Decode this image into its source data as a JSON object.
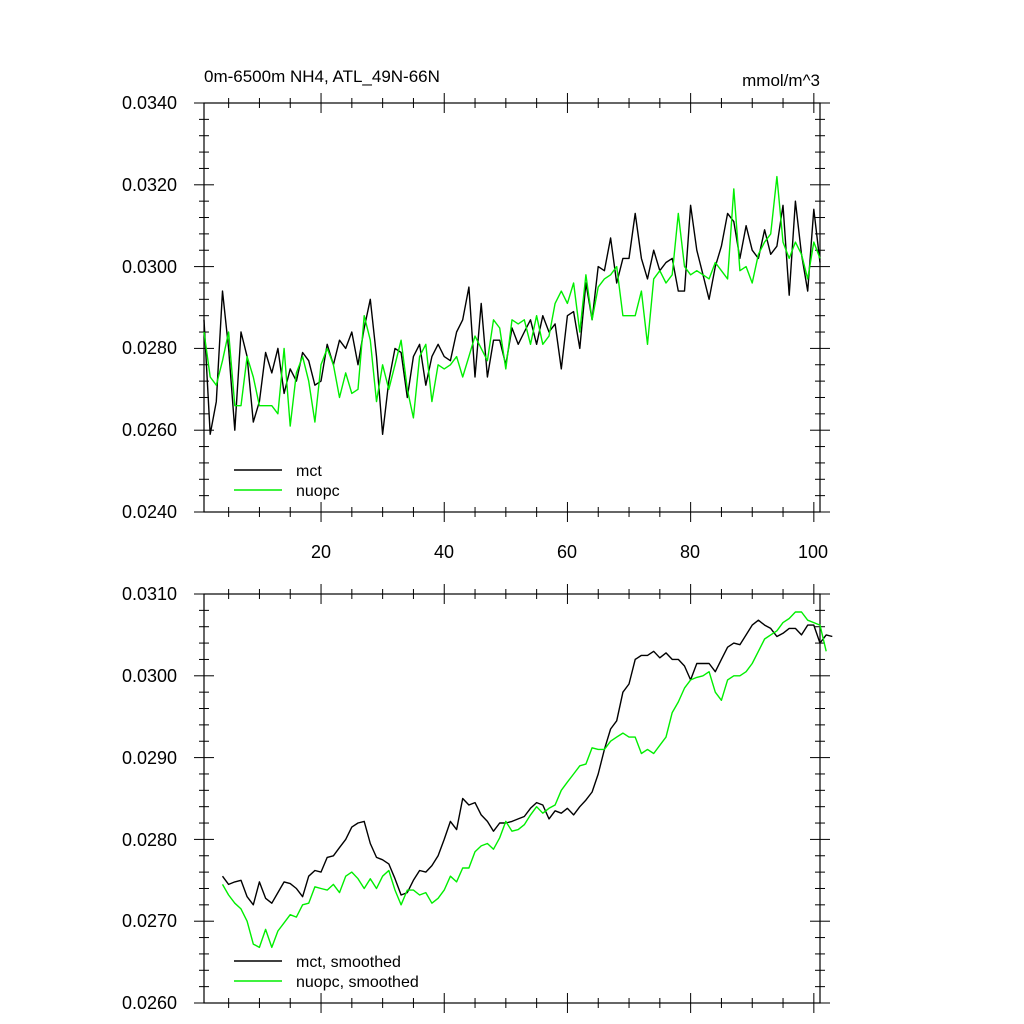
{
  "chart_data": [
    {
      "type": "line",
      "title_left": "0m-6500m NH4, ATL_49N-66N",
      "title_right": "mmol/m^3",
      "xlim": [
        1,
        101
      ],
      "ylim": [
        0.024,
        0.034
      ],
      "yticks": [
        "0.0240",
        "0.0260",
        "0.0280",
        "0.0300",
        "0.0320",
        "0.0340"
      ],
      "xticks": [
        "20",
        "40",
        "60",
        "80",
        "100"
      ],
      "xtick_values": [
        20,
        40,
        60,
        80,
        100
      ],
      "ytick_values": [
        0.024,
        0.026,
        0.028,
        0.03,
        0.032,
        0.034
      ],
      "legend": [
        "mct",
        "nuopc"
      ],
      "series": [
        {
          "name": "mct",
          "color": "#000000",
          "x_start": 1,
          "values": [
            0.0287,
            0.0259,
            0.0267,
            0.0294,
            0.028,
            0.026,
            0.0284,
            0.0278,
            0.0262,
            0.0267,
            0.0279,
            0.0274,
            0.028,
            0.0269,
            0.0275,
            0.0272,
            0.0279,
            0.0277,
            0.0271,
            0.0272,
            0.0281,
            0.0276,
            0.0282,
            0.028,
            0.0284,
            0.0276,
            0.0285,
            0.0292,
            0.0278,
            0.0259,
            0.0272,
            0.028,
            0.0279,
            0.0268,
            0.0278,
            0.0281,
            0.0271,
            0.0278,
            0.0281,
            0.0278,
            0.0277,
            0.0284,
            0.0287,
            0.0295,
            0.0273,
            0.0291,
            0.0273,
            0.0282,
            0.0282,
            0.0276,
            0.0285,
            0.0281,
            0.0284,
            0.0287,
            0.0281,
            0.0288,
            0.0284,
            0.0286,
            0.0275,
            0.0288,
            0.0289,
            0.028,
            0.0296,
            0.0287,
            0.03,
            0.0299,
            0.0307,
            0.0296,
            0.0302,
            0.0302,
            0.0313,
            0.0302,
            0.0297,
            0.0304,
            0.0299,
            0.0301,
            0.0302,
            0.0294,
            0.0294,
            0.0315,
            0.0304,
            0.0298,
            0.0292,
            0.03,
            0.0305,
            0.0313,
            0.0311,
            0.0302,
            0.031,
            0.0304,
            0.0302,
            0.0309,
            0.0303,
            0.0305,
            0.0315,
            0.0293,
            0.0316,
            0.0303,
            0.0294,
            0.0314,
            0.0301
          ]
        },
        {
          "name": "nuopc",
          "color": "#00ee00",
          "x_start": 1,
          "values": [
            0.0284,
            0.0273,
            0.0271,
            0.0277,
            0.0284,
            0.0266,
            0.0266,
            0.0278,
            0.0273,
            0.0266,
            0.0266,
            0.0266,
            0.0264,
            0.028,
            0.0261,
            0.0274,
            0.0278,
            0.0272,
            0.0262,
            0.0276,
            0.028,
            0.0276,
            0.0268,
            0.0274,
            0.0269,
            0.027,
            0.0288,
            0.0282,
            0.0267,
            0.0276,
            0.027,
            0.0276,
            0.0282,
            0.027,
            0.0263,
            0.0278,
            0.0281,
            0.0267,
            0.0276,
            0.0275,
            0.0276,
            0.0278,
            0.0273,
            0.0278,
            0.0283,
            0.028,
            0.0277,
            0.0287,
            0.0285,
            0.0275,
            0.0287,
            0.0286,
            0.0287,
            0.0281,
            0.0288,
            0.0281,
            0.0283,
            0.0291,
            0.0294,
            0.0291,
            0.0296,
            0.0284,
            0.0298,
            0.0287,
            0.0295,
            0.0297,
            0.0298,
            0.03,
            0.0288,
            0.0288,
            0.0288,
            0.0294,
            0.0281,
            0.0297,
            0.0299,
            0.0296,
            0.0298,
            0.0313,
            0.03,
            0.0298,
            0.0299,
            0.0298,
            0.0297,
            0.0301,
            0.0299,
            0.0297,
            0.0319,
            0.0299,
            0.03,
            0.0296,
            0.0303,
            0.0306,
            0.0308,
            0.0322,
            0.0306,
            0.0302,
            0.0306,
            0.0303,
            0.0297,
            0.0306,
            0.0302
          ]
        }
      ]
    },
    {
      "type": "line",
      "xlim": [
        1,
        101
      ],
      "ylim": [
        0.026,
        0.031
      ],
      "yticks": [
        "0.0260",
        "0.0270",
        "0.0280",
        "0.0290",
        "0.0300",
        "0.0310"
      ],
      "ytick_values": [
        0.026,
        0.027,
        0.028,
        0.029,
        0.03,
        0.031
      ],
      "xtick_values": [
        20,
        40,
        60,
        80,
        100
      ],
      "legend": [
        "mct, smoothed",
        "nuopc, smoothed"
      ],
      "series": [
        {
          "name": "mct, smoothed",
          "color": "#000000",
          "x_start": 4,
          "values": [
            0.02755,
            0.02745,
            0.02748,
            0.0275,
            0.0273,
            0.0272,
            0.02748,
            0.02728,
            0.02722,
            0.02735,
            0.02748,
            0.02746,
            0.0274,
            0.0273,
            0.02755,
            0.02762,
            0.0276,
            0.02778,
            0.0278,
            0.0279,
            0.028,
            0.02815,
            0.0282,
            0.02822,
            0.02795,
            0.02778,
            0.02775,
            0.0277,
            0.02752,
            0.02732,
            0.02735,
            0.0275,
            0.02762,
            0.0276,
            0.02768,
            0.0278,
            0.028,
            0.02822,
            0.02812,
            0.0285,
            0.02842,
            0.02845,
            0.0283,
            0.02822,
            0.0281,
            0.0282,
            0.0282,
            0.02822,
            0.02825,
            0.02828,
            0.02838,
            0.02845,
            0.02842,
            0.02825,
            0.02835,
            0.02832,
            0.02838,
            0.0283,
            0.0284,
            0.02848,
            0.02858,
            0.0288,
            0.0291,
            0.02935,
            0.02945,
            0.0298,
            0.0299,
            0.0302,
            0.03025,
            0.03025,
            0.0303,
            0.03022,
            0.03028,
            0.0302,
            0.0302,
            0.03012,
            0.02995,
            0.03015,
            0.03015,
            0.03015,
            0.03005,
            0.0302,
            0.03035,
            0.0304,
            0.03038,
            0.0305,
            0.03062,
            0.03068,
            0.03062,
            0.03058,
            0.03048,
            0.03052,
            0.03058,
            0.03058,
            0.0305,
            0.03062,
            0.03062,
            0.0304,
            0.0305,
            0.03048
          ]
        },
        {
          "name": "nuopc, smoothed",
          "color": "#00ee00",
          "x_start": 4,
          "values": [
            0.02745,
            0.02732,
            0.02722,
            0.02715,
            0.027,
            0.02672,
            0.02668,
            0.0269,
            0.02668,
            0.02688,
            0.02698,
            0.02708,
            0.02705,
            0.0272,
            0.02722,
            0.02742,
            0.0274,
            0.02738,
            0.02745,
            0.02735,
            0.02755,
            0.0276,
            0.02752,
            0.0274,
            0.02752,
            0.0274,
            0.02755,
            0.02762,
            0.02738,
            0.0272,
            0.02738,
            0.02738,
            0.02732,
            0.02735,
            0.02722,
            0.02728,
            0.02738,
            0.02755,
            0.02748,
            0.02765,
            0.02765,
            0.02785,
            0.02792,
            0.02795,
            0.02788,
            0.02802,
            0.02822,
            0.0281,
            0.02812,
            0.02818,
            0.0283,
            0.0284,
            0.02832,
            0.02838,
            0.02842,
            0.0286,
            0.0287,
            0.0288,
            0.0289,
            0.02892,
            0.02912,
            0.0291,
            0.0291,
            0.0292,
            0.02925,
            0.0293,
            0.02925,
            0.02925,
            0.02905,
            0.0291,
            0.02905,
            0.02915,
            0.02925,
            0.02955,
            0.02968,
            0.02985,
            0.02995,
            0.02998,
            0.03,
            0.03005,
            0.0298,
            0.0297,
            0.02995,
            0.03,
            0.03,
            0.03005,
            0.03015,
            0.0303,
            0.03045,
            0.0305,
            0.03055,
            0.03065,
            0.0307,
            0.03078,
            0.03078,
            0.03068,
            0.03065,
            0.03062,
            0.0303
          ]
        }
      ]
    }
  ]
}
